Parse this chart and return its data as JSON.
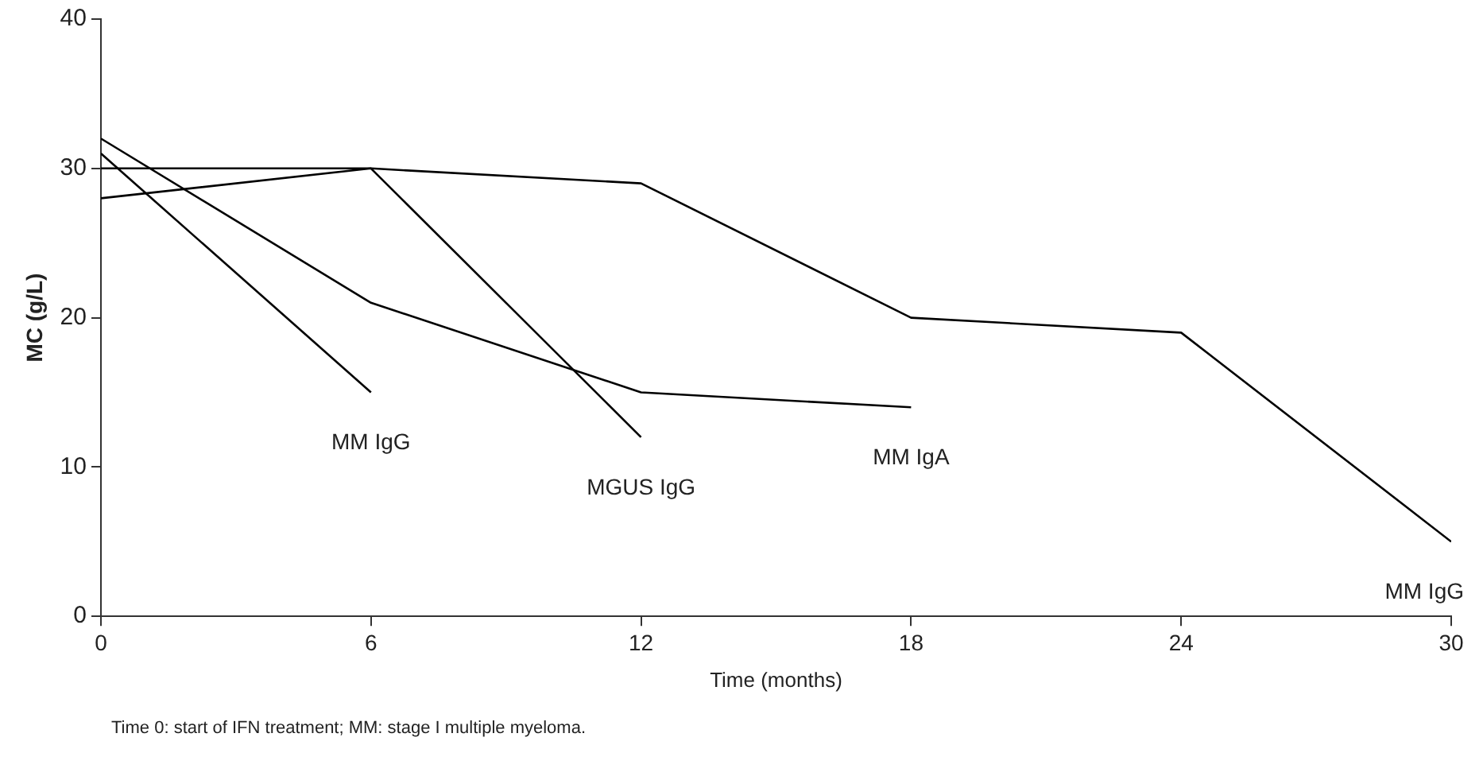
{
  "chart_data": {
    "type": "line",
    "xlabel": "Time (months)",
    "ylabel": "MC (g/L)",
    "xlim": [
      0,
      30
    ],
    "xticks": [
      0,
      6,
      12,
      18,
      24,
      30
    ],
    "ylim": [
      0,
      40
    ],
    "yticks": [
      0,
      10,
      20,
      30,
      40
    ],
    "grid": false,
    "legend": false,
    "marker": "none",
    "line_style": "solid",
    "series": [
      {
        "name": "MM IgG",
        "color": "#000000",
        "x": [
          0,
          6
        ],
        "values": [
          31,
          15
        ]
      },
      {
        "name": "MGUS IgG",
        "color": "#000000",
        "x": [
          0,
          6,
          12
        ],
        "values": [
          28,
          30,
          12
        ]
      },
      {
        "name": "MM IgA",
        "color": "#000000",
        "x": [
          0,
          6,
          12,
          18
        ],
        "values": [
          32,
          21,
          15,
          14
        ]
      },
      {
        "name": "MM IgG",
        "color": "#000000",
        "x": [
          0,
          6,
          12,
          18,
          24,
          30
        ],
        "values": [
          30,
          30,
          29,
          20,
          19,
          5
        ]
      }
    ],
    "annotations": [
      "Time 0: start of IFN treatment; MM: stage I multiple myeloma."
    ]
  }
}
